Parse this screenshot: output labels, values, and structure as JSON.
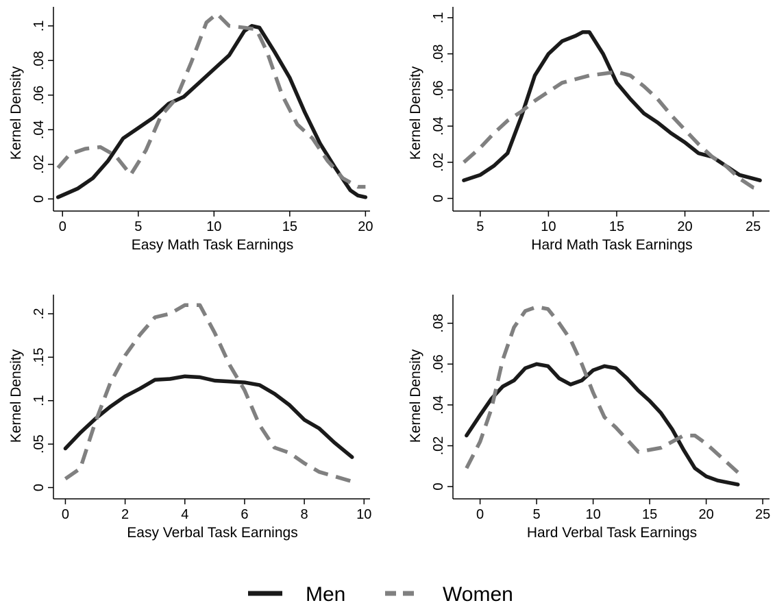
{
  "colors": {
    "men": "#1a1a1a",
    "women": "#808080",
    "axis": "#000000",
    "background": "#ffffff"
  },
  "legend": {
    "placement": "bottom-center",
    "items": [
      {
        "label": "Men",
        "style": "solid",
        "color": "#1a1a1a"
      },
      {
        "label": "Women",
        "style": "dashed",
        "color": "#808080"
      }
    ]
  },
  "chart_data": [
    {
      "type": "line",
      "xlabel": "Easy Math Task Earnings",
      "ylabel": "Kernel Density",
      "xlim": [
        -0.6,
        20.3
      ],
      "ylim": [
        -0.007,
        0.111
      ],
      "xticks": [
        0,
        5,
        10,
        15,
        20
      ],
      "yticks": [
        0,
        0.02,
        0.04,
        0.06,
        0.08,
        0.1
      ],
      "ytick_labels": [
        "0",
        ".02",
        ".04",
        ".06",
        ".08",
        ".1"
      ],
      "grid": false,
      "series": [
        {
          "name": "Men",
          "x": [
            -0.3,
            1,
            2,
            3,
            4,
            5,
            6,
            7,
            8,
            9,
            10,
            11,
            12,
            12.5,
            13,
            14,
            15,
            16,
            17,
            18,
            19,
            19.5,
            20
          ],
          "y": [
            0.001,
            0.006,
            0.012,
            0.022,
            0.035,
            0.041,
            0.047,
            0.055,
            0.059,
            0.067,
            0.075,
            0.083,
            0.097,
            0.1,
            0.099,
            0.085,
            0.07,
            0.05,
            0.032,
            0.018,
            0.005,
            0.002,
            0.001
          ]
        },
        {
          "name": "Women",
          "x": [
            -0.3,
            0.5,
            1.5,
            2.5,
            3.5,
            4.5,
            5.5,
            6.5,
            7.5,
            8.5,
            9.5,
            10.2,
            11,
            12,
            12.8,
            13.5,
            14.5,
            15.5,
            16.5,
            17.5,
            18.5,
            19.5,
            20
          ],
          "y": [
            0.018,
            0.026,
            0.029,
            0.03,
            0.025,
            0.014,
            0.028,
            0.048,
            0.058,
            0.079,
            0.102,
            0.107,
            0.1,
            0.099,
            0.098,
            0.085,
            0.06,
            0.043,
            0.035,
            0.022,
            0.012,
            0.007,
            0.007
          ]
        }
      ]
    },
    {
      "type": "line",
      "xlabel": "Hard Math Task Earnings",
      "ylabel": "Kernel Density",
      "xlim": [
        3,
        26.2
      ],
      "ylim": [
        -0.007,
        0.106
      ],
      "xticks": [
        5,
        10,
        15,
        20,
        25
      ],
      "yticks": [
        0,
        0.02,
        0.04,
        0.06,
        0.08,
        0.1
      ],
      "ytick_labels": [
        "0",
        ".02",
        ".04",
        ".06",
        ".08",
        ".1"
      ],
      "grid": false,
      "series": [
        {
          "name": "Men",
          "x": [
            3.8,
            5,
            6,
            7,
            8,
            9,
            10,
            11,
            12,
            12.5,
            13,
            14,
            15,
            16,
            17,
            18,
            19,
            20,
            21,
            22,
            23,
            24,
            25.5
          ],
          "y": [
            0.01,
            0.013,
            0.018,
            0.025,
            0.045,
            0.068,
            0.08,
            0.087,
            0.09,
            0.092,
            0.092,
            0.08,
            0.064,
            0.055,
            0.047,
            0.042,
            0.036,
            0.031,
            0.025,
            0.023,
            0.018,
            0.013,
            0.01
          ]
        },
        {
          "name": "Women",
          "x": [
            3.8,
            5,
            6,
            7,
            8,
            9,
            10,
            11,
            12,
            13,
            14,
            15,
            16,
            17,
            18,
            19,
            20,
            21,
            22,
            23,
            24,
            25,
            25.5
          ],
          "y": [
            0.02,
            0.028,
            0.036,
            0.043,
            0.048,
            0.054,
            0.059,
            0.064,
            0.066,
            0.068,
            0.069,
            0.07,
            0.068,
            0.062,
            0.055,
            0.046,
            0.038,
            0.03,
            0.023,
            0.018,
            0.011,
            0.006,
            0.005
          ]
        }
      ]
    },
    {
      "type": "line",
      "xlabel": "Easy Verbal Task Earnings",
      "ylabel": "Kernel Density",
      "xlim": [
        -0.4,
        10.2
      ],
      "ylim": [
        -0.013,
        0.222
      ],
      "xticks": [
        0,
        2,
        4,
        6,
        8,
        10
      ],
      "yticks": [
        0,
        0.05,
        0.1,
        0.15,
        0.2
      ],
      "ytick_labels": [
        "0",
        ".05",
        ".1",
        ".15",
        ".2"
      ],
      "grid": false,
      "series": [
        {
          "name": "Men",
          "x": [
            0,
            0.5,
            1,
            1.5,
            2,
            2.5,
            3,
            3.5,
            4,
            4.5,
            5,
            5.5,
            6,
            6.5,
            7,
            7.5,
            8,
            8.5,
            9,
            9.6
          ],
          "y": [
            0.045,
            0.063,
            0.079,
            0.093,
            0.105,
            0.114,
            0.124,
            0.125,
            0.128,
            0.127,
            0.123,
            0.122,
            0.121,
            0.118,
            0.108,
            0.095,
            0.078,
            0.068,
            0.052,
            0.035
          ]
        },
        {
          "name": "Women",
          "x": [
            0,
            0.5,
            1,
            1.5,
            2,
            2.5,
            3,
            3.5,
            4,
            4.5,
            5,
            5.5,
            6,
            6.5,
            7,
            7.5,
            8,
            8.5,
            9,
            9.6
          ],
          "y": [
            0.01,
            0.022,
            0.075,
            0.12,
            0.152,
            0.176,
            0.196,
            0.2,
            0.21,
            0.21,
            0.178,
            0.141,
            0.112,
            0.072,
            0.046,
            0.04,
            0.028,
            0.018,
            0.013,
            0.007
          ]
        }
      ]
    },
    {
      "type": "line",
      "xlabel": "Hard Verbal Task Earnings",
      "ylabel": "Kernel Density",
      "xlim": [
        -2.4,
        25.6
      ],
      "ylim": [
        -0.006,
        0.094
      ],
      "xticks": [
        0,
        5,
        10,
        15,
        20,
        25
      ],
      "yticks": [
        0,
        0.02,
        0.04,
        0.06,
        0.08
      ],
      "ytick_labels": [
        "0",
        ".02",
        ".04",
        ".06",
        ".08"
      ],
      "grid": false,
      "series": [
        {
          "name": "Men",
          "x": [
            -1.2,
            0,
            1,
            2,
            3,
            4,
            5,
            6,
            7,
            8,
            9,
            10,
            11,
            12,
            13,
            14,
            15,
            16,
            17,
            18,
            19,
            20,
            21,
            22.8
          ],
          "y": [
            0.025,
            0.035,
            0.043,
            0.049,
            0.052,
            0.058,
            0.06,
            0.059,
            0.053,
            0.05,
            0.052,
            0.057,
            0.059,
            0.058,
            0.053,
            0.047,
            0.042,
            0.036,
            0.028,
            0.018,
            0.009,
            0.005,
            0.003,
            0.001
          ]
        },
        {
          "name": "Women",
          "x": [
            -1.2,
            0,
            1,
            2,
            3,
            4,
            5,
            6,
            7,
            8,
            9,
            10,
            11,
            12,
            13,
            14,
            15,
            16,
            17,
            18,
            19,
            20,
            21,
            22.8
          ],
          "y": [
            0.009,
            0.022,
            0.038,
            0.062,
            0.078,
            0.086,
            0.088,
            0.087,
            0.08,
            0.072,
            0.06,
            0.046,
            0.034,
            0.029,
            0.023,
            0.017,
            0.018,
            0.019,
            0.022,
            0.025,
            0.025,
            0.021,
            0.016,
            0.007
          ]
        }
      ]
    }
  ]
}
